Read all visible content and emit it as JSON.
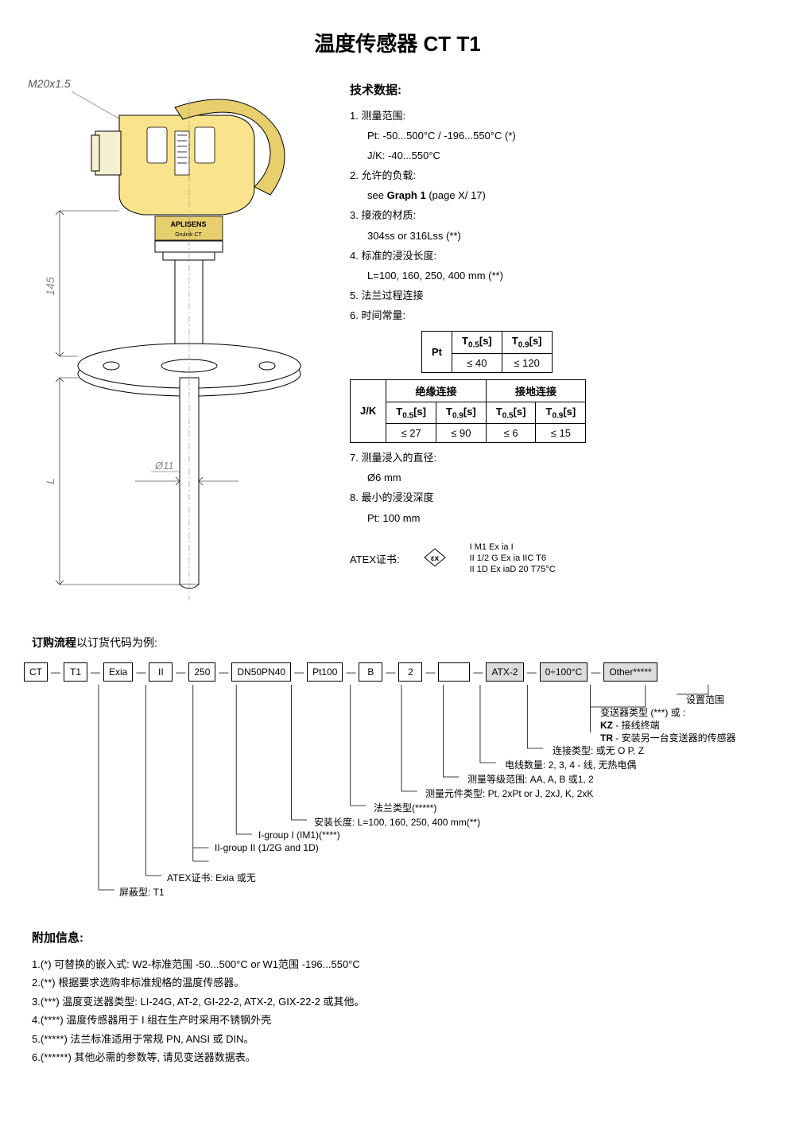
{
  "title": "温度传感器 CT T1",
  "diagram": {
    "thread": "M20x1.5",
    "dim145": "145",
    "dimL": "L",
    "dim11": "Ø11",
    "brand": "APLISENS",
    "model": "Grulnik CT"
  },
  "tech": {
    "heading": "技术数据:",
    "items": {
      "i1": "1. 测量范围:",
      "i1a": "Pt:   -50...500°C / -196...550°C (*)",
      "i1b": "J/K: -40...550°C",
      "i2": "2. 允许的负载:",
      "i2a": "see Graph 1 (page X/ 17)",
      "i3": "3. 接液的材质:",
      "i3a": "304ss or 316Lss (**)",
      "i4": "4. 标准的浸没长度:",
      "i4a": "L=100, 160, 250, 400 mm (**)",
      "i5": "5. 法兰过程连接",
      "i6": "6. 时间常量:",
      "i7": "7. 测量浸入的直径:",
      "i7a": "Ø6 mm",
      "i8": "8. 最小的浸没深度",
      "i8a": "Pt: 100 mm"
    }
  },
  "table_pt": {
    "pt": "Pt",
    "t05": "T",
    "t05sub": "0.5",
    "t05unit": "[s]",
    "t09": "T",
    "t09sub": "0.9",
    "t09unit": "[s]",
    "v05": "≤ 40",
    "v09": "≤ 120"
  },
  "table_jk": {
    "jk": "J/K",
    "h_ins": "绝缘连接",
    "h_gnd": "接地连接",
    "t05": "T",
    "t05sub": "0.5",
    "unit": "[s]",
    "t09": "T",
    "t09sub": "0.9",
    "v1": "≤ 27",
    "v2": "≤ 90",
    "v3": "≤ 6",
    "v4": "≤ 15"
  },
  "atex": {
    "label": "ATEX证书:",
    "l1": "I M1 Ex ia I",
    "l2": "II 1/2 G Ex ia IIC T6",
    "l3": "II 1D Ex iaD 20 T75°C"
  },
  "order": {
    "heading_bold": "订购流程",
    "heading_normal": "以订货代码为例:",
    "boxes": [
      "CT",
      "T1",
      "Exia",
      "II",
      "250",
      "DN50PN40",
      "Pt100",
      "B",
      "2",
      "",
      "ATX-2",
      "0÷100°C",
      "Other*****"
    ],
    "labels": {
      "l_range": "设置范围",
      "l_trans": "变送器类型 (***) 或 :",
      "l_kz": "KZ - 接线终端",
      "l_tr": "TR - 安装另一台变送器的传感器",
      "l_conn": "连接类型: 或无 O P, Z",
      "l_wire": "电线数量: 2, 3, 4 - 线, 无热电偶",
      "l_class": "测量等级范围: AA, A, B 或1, 2",
      "l_elem": "测量元件类型: Pt, 2xPt or J, 2xJ, K, 2xK",
      "l_flange": "法兰类型(*****)",
      "l_len": "安装长度: L=100, 160, 250, 400 mm(**)",
      "l_grp1": "I-group I (IM1)(****)",
      "l_grp2": "II-group II (1/2G and 1D)",
      "l_atex": "ATEX证书: Exia 或无",
      "l_shield": "屏蔽型: T1"
    }
  },
  "addinfo": {
    "heading": "附加信息:",
    "n1": "1.(*) 可替换的嵌入式:  W2-标准范围 -50...500°C  or W1范围 -196...550°C",
    "n2": "2.(**) 根据要求选购非标准规格的温度传感器。",
    "n3": "3.(***) 温度变送器类型:  LI-24G, AT-2, GI-22-2, ATX-2, GIX-22-2 或其他。",
    "n4": "4.(****) 温度传感器用于 I 组在生产时采用不锈钢外壳",
    "n5": "5.(*****) 法兰标准适用于常规 PN, ANSI 或 DIN。",
    "n6": "6.(******) 其他必需的参数等, 请见变送器数据表。"
  }
}
